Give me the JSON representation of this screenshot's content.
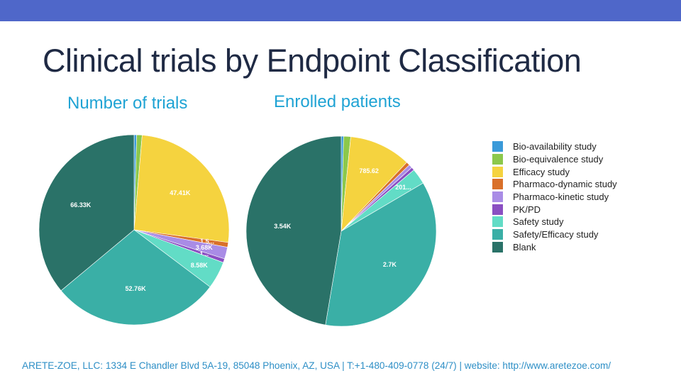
{
  "slide": {
    "title": "Clinical trials by Endpoint Classification",
    "footer": "ARETE-ZOE, LLC: 1334 E Chandler Blvd 5A-19, 85048 Phoenix, AZ, USA | T:+1-480-409-0778 (24/7) | website: http://www.aretezoe.com/",
    "colors": {
      "top_bar": "#4f67c9",
      "subtitle": "#1fa3d4",
      "footer": "#2e8fc6"
    }
  },
  "legend": [
    {
      "label": "Bio-availability study",
      "color": "#3a9ad9"
    },
    {
      "label": "Bio-equivalence study",
      "color": "#8cc84b"
    },
    {
      "label": "Efficacy study",
      "color": "#f5d33f"
    },
    {
      "label": "Pharmaco-dynamic study",
      "color": "#d9702a"
    },
    {
      "label": "Pharmaco-kinetic study",
      "color": "#a98ce6"
    },
    {
      "label": "PK/PD",
      "color": "#8a4fc2"
    },
    {
      "label": "Safety study",
      "color": "#62dcc6"
    },
    {
      "label": "Safety/Efficacy study",
      "color": "#3aafa6"
    },
    {
      "label": "Blank",
      "color": "#2a7268"
    }
  ],
  "chart_data": [
    {
      "type": "pie",
      "title": "Number of trials",
      "legend_position": "right",
      "slices": [
        {
          "category": "Bio-availability study",
          "value": 800,
          "label": ""
        },
        {
          "category": "Bio-equivalence study",
          "value": 1700,
          "label": ""
        },
        {
          "category": "Efficacy study",
          "value": 47410,
          "label": "47.41K"
        },
        {
          "category": "Pharmaco-dynamic study",
          "value": 1500,
          "label": "1.5..."
        },
        {
          "category": "Pharmaco-kinetic study",
          "value": 3680,
          "label": "3.68K"
        },
        {
          "category": "PK/PD",
          "value": 1200,
          "label": "1..."
        },
        {
          "category": "Safety study",
          "value": 8580,
          "label": "8.58K"
        },
        {
          "category": "Safety/Efficacy study",
          "value": 52760,
          "label": "52.76K"
        },
        {
          "category": "Blank",
          "value": 66330,
          "label": "66.33K"
        }
      ]
    },
    {
      "type": "pie",
      "title": "Enrolled patients",
      "legend_position": "right",
      "slices": [
        {
          "category": "Bio-availability study",
          "value": 30,
          "label": ""
        },
        {
          "category": "Bio-equivalence study",
          "value": 90,
          "label": ""
        },
        {
          "category": "Efficacy study",
          "value": 785.62,
          "label": "785.62"
        },
        {
          "category": "Pharmaco-dynamic study",
          "value": 45,
          "label": ""
        },
        {
          "category": "Pharmaco-kinetic study",
          "value": 45,
          "label": ""
        },
        {
          "category": "PK/PD",
          "value": 40,
          "label": ""
        },
        {
          "category": "Safety study",
          "value": 201,
          "label": "201..."
        },
        {
          "category": "Safety/Efficacy study",
          "value": 2700,
          "label": "2.7K"
        },
        {
          "category": "Blank",
          "value": 3540,
          "label": "3.54K"
        }
      ]
    }
  ]
}
